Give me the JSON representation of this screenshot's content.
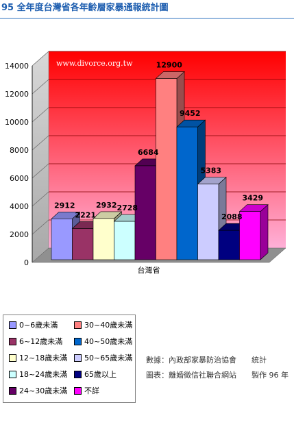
{
  "title": "95 全年度台灣省各年齡層家暴通報統計圖",
  "watermark": "www.divorce.org.tw",
  "credits": {
    "line1": "數據：內政部家暴防治協會　　統計",
    "line2": "圖表：離婚徵信社聯合網站　　製作 96 年"
  },
  "colors": {
    "title": "#1f5fb0",
    "rule": "#2f73c0",
    "wall_top": "#ff0000",
    "wall_bottom": "#ffb0d8"
  },
  "chart_data": {
    "type": "bar",
    "categories": [
      "台灣省"
    ],
    "ylim": [
      0,
      14000
    ],
    "yticks": [
      0,
      2000,
      4000,
      6000,
      8000,
      10000,
      12000,
      14000
    ],
    "grid": true,
    "legend_position": "bottom-left",
    "series": [
      {
        "name": "0~6歲未滿",
        "value": 2912,
        "color": "#9999ff"
      },
      {
        "name": "6~12歲未滿",
        "value": 2221,
        "color": "#993366"
      },
      {
        "name": "12~18歲未滿",
        "value": 2932,
        "color": "#ffffcc"
      },
      {
        "name": "18~24歲未滿",
        "value": 2728,
        "color": "#ccffff"
      },
      {
        "name": "24~30歲未滿",
        "value": 6684,
        "color": "#660066"
      },
      {
        "name": "30~40歲未滿",
        "value": 12900,
        "color": "#ff8080"
      },
      {
        "name": "40~50歲未滿",
        "value": 9452,
        "color": "#0066cc"
      },
      {
        "name": "50~65歲未滿",
        "value": 5383,
        "color": "#ccccff"
      },
      {
        "name": "65歲以上",
        "value": 2088,
        "color": "#000080"
      },
      {
        "name": "不詳",
        "value": 3429,
        "color": "#ff00ff"
      }
    ]
  }
}
